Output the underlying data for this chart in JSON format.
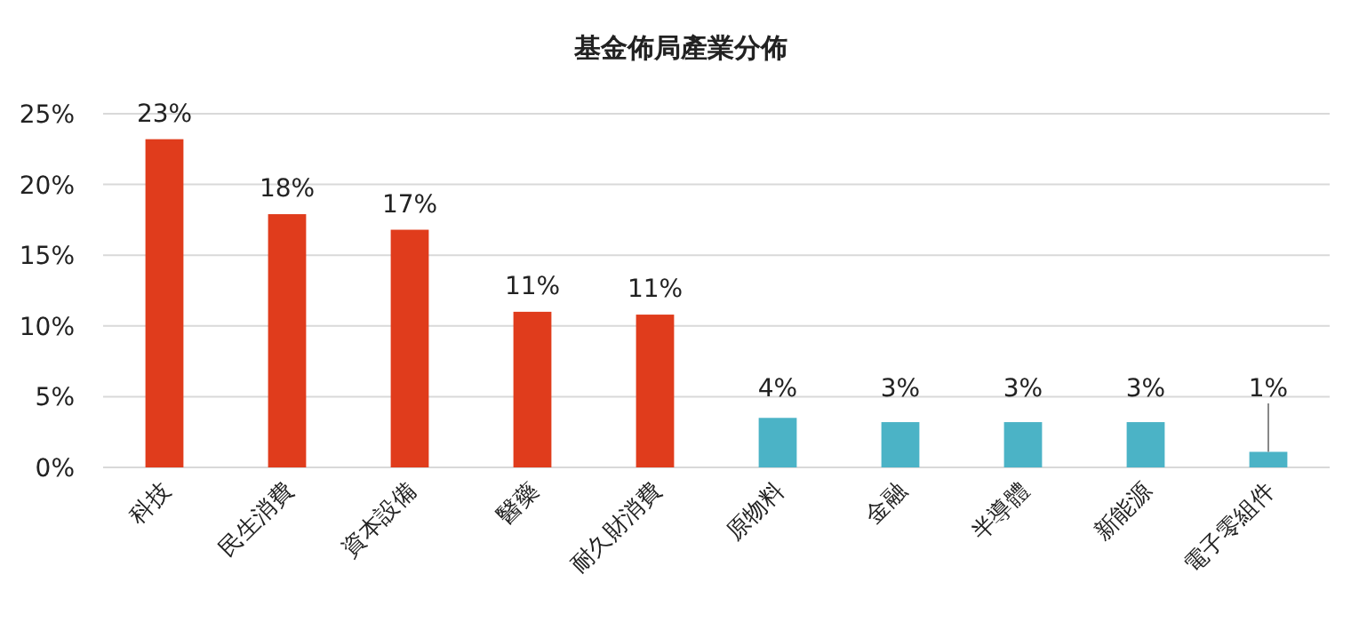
{
  "chart_data": {
    "type": "bar",
    "title": "基金佈局產業分佈",
    "categories": [
      "科技",
      "民生消費",
      "資本設備",
      "醫藥",
      "耐久財消費",
      "原物料",
      "金融",
      "半導體",
      "新能源",
      "電子零組件"
    ],
    "values": [
      23.2,
      17.9,
      16.8,
      11.0,
      10.8,
      3.5,
      3.2,
      3.2,
      3.2,
      1.1
    ],
    "value_labels": [
      "23%",
      "18%",
      "17%",
      "11%",
      "11%",
      "4%",
      "3%",
      "3%",
      "3%",
      "1%"
    ],
    "colors": [
      "#e03c1c",
      "#e03c1c",
      "#e03c1c",
      "#e03c1c",
      "#e03c1c",
      "#4bb3c6",
      "#4bb3c6",
      "#4bb3c6",
      "#4bb3c6",
      "#4bb3c6"
    ],
    "ylim": [
      0,
      25
    ],
    "yticks": [
      {
        "value": 0,
        "label": "0%"
      },
      {
        "value": 5,
        "label": "5%"
      },
      {
        "value": 10,
        "label": "10%"
      },
      {
        "value": 15,
        "label": "15%"
      },
      {
        "value": 20,
        "label": "20%"
      },
      {
        "value": 25,
        "label": "25%"
      }
    ],
    "grid": "y"
  }
}
